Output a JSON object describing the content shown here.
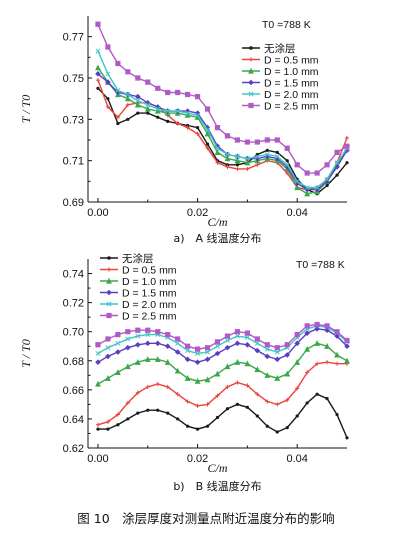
{
  "figure_caption": "图 10　涂层厚度对测量点附近温度分布的影响",
  "colors": {
    "none": "#1a1a1a",
    "d05": "#e8453c",
    "d10": "#3aa84a",
    "d15": "#5a3fc4",
    "d20": "#3fc6c6",
    "d25": "#b05ac8"
  },
  "chart_data": [
    {
      "type": "line",
      "subcaption": "a)　A 线温度分布",
      "annotation": "T0 =788 K",
      "xlabel": "C/m",
      "ylabel": "T / T0",
      "xlim": [
        -0.002,
        0.05
      ],
      "ylim": [
        0.69,
        0.78
      ],
      "xticks": [
        "0.00",
        "0.02",
        "0.04"
      ],
      "xtick_values": [
        0.0,
        0.02,
        0.04
      ],
      "yticks": [
        "0.69",
        "0.71",
        "0.73",
        "0.75",
        "0.77"
      ],
      "ytick_values": [
        0.69,
        0.71,
        0.73,
        0.75,
        0.77
      ],
      "legend": [
        "无涂层",
        "D = 0.5 mm",
        "D = 1.0 mm",
        "D = 1.5 mm",
        "D = 2.0 mm",
        "D = 2.5 mm"
      ],
      "x": [
        0,
        0.002,
        0.004,
        0.006,
        0.008,
        0.01,
        0.012,
        0.014,
        0.016,
        0.018,
        0.02,
        0.022,
        0.024,
        0.026,
        0.028,
        0.03,
        0.032,
        0.034,
        0.036,
        0.038,
        0.04,
        0.042,
        0.044,
        0.046,
        0.048,
        0.05
      ],
      "series": [
        {
          "name": "无涂层",
          "color_key": "none",
          "values": [
            0.745,
            0.74,
            0.728,
            0.73,
            0.733,
            0.733,
            0.731,
            0.729,
            0.728,
            0.727,
            0.726,
            0.718,
            0.71,
            0.708,
            0.708,
            0.709,
            0.713,
            0.715,
            0.714,
            0.71,
            0.701,
            0.696,
            0.694,
            0.698,
            0.703,
            0.709
          ]
        },
        {
          "name": "D = 0.5 mm",
          "color_key": "d05",
          "values": [
            0.749,
            0.736,
            0.731,
            0.737,
            0.738,
            0.738,
            0.736,
            0.732,
            0.728,
            0.726,
            0.723,
            0.716,
            0.709,
            0.707,
            0.706,
            0.706,
            0.708,
            0.71,
            0.709,
            0.704,
            0.697,
            0.696,
            0.697,
            0.701,
            0.709,
            0.721
          ]
        },
        {
          "name": "D = 1.0 mm",
          "color_key": "d10",
          "values": [
            0.755,
            0.748,
            0.742,
            0.74,
            0.737,
            0.735,
            0.734,
            0.733,
            0.733,
            0.732,
            0.731,
            0.723,
            0.714,
            0.711,
            0.71,
            0.709,
            0.71,
            0.711,
            0.71,
            0.706,
            0.697,
            0.694,
            0.695,
            0.7,
            0.708,
            0.716
          ]
        },
        {
          "name": "D = 1.5 mm",
          "color_key": "d15",
          "values": [
            0.752,
            0.748,
            0.743,
            0.742,
            0.741,
            0.738,
            0.736,
            0.734,
            0.734,
            0.734,
            0.733,
            0.726,
            0.717,
            0.713,
            0.712,
            0.711,
            0.711,
            0.712,
            0.711,
            0.707,
            0.699,
            0.696,
            0.696,
            0.7,
            0.707,
            0.715
          ]
        },
        {
          "name": "D = 2.0 mm",
          "color_key": "d20",
          "values": [
            0.763,
            0.752,
            0.744,
            0.742,
            0.739,
            0.737,
            0.735,
            0.734,
            0.734,
            0.733,
            0.732,
            0.725,
            0.716,
            0.713,
            0.712,
            0.711,
            0.712,
            0.713,
            0.712,
            0.708,
            0.7,
            0.697,
            0.697,
            0.701,
            0.709,
            0.716
          ]
        },
        {
          "name": "D = 2.5 mm",
          "color_key": "d25",
          "values": [
            0.776,
            0.765,
            0.757,
            0.753,
            0.75,
            0.748,
            0.745,
            0.743,
            0.743,
            0.742,
            0.741,
            0.735,
            0.726,
            0.722,
            0.72,
            0.719,
            0.719,
            0.72,
            0.72,
            0.716,
            0.708,
            0.704,
            0.704,
            0.708,
            0.714,
            0.717
          ]
        }
      ]
    },
    {
      "type": "line",
      "subcaption": "b)　B 线温度分布",
      "annotation": "T0 =788 K",
      "xlabel": "C/m",
      "ylabel": "T / T0",
      "xlim": [
        -0.002,
        0.05
      ],
      "ylim": [
        0.62,
        0.75
      ],
      "xticks": [
        "0.00",
        "0.02",
        "0.04"
      ],
      "xtick_values": [
        0.0,
        0.02,
        0.04
      ],
      "yticks": [
        "0.62",
        "0.64",
        "0.66",
        "0.68",
        "0.70",
        "0.72",
        "0.74"
      ],
      "ytick_values": [
        0.62,
        0.64,
        0.66,
        0.68,
        0.7,
        0.72,
        0.74
      ],
      "legend": [
        "无涂层",
        "D = 0.5 mm",
        "D = 1.0 mm",
        "D = 1.5 mm",
        "D = 2.0 mm",
        "D = 2.5 mm"
      ],
      "x": [
        0,
        0.002,
        0.004,
        0.006,
        0.008,
        0.01,
        0.012,
        0.014,
        0.016,
        0.018,
        0.02,
        0.022,
        0.024,
        0.026,
        0.028,
        0.03,
        0.032,
        0.034,
        0.036,
        0.038,
        0.04,
        0.042,
        0.044,
        0.046,
        0.048,
        0.05
      ],
      "series": [
        {
          "name": "无涂层",
          "color_key": "none",
          "values": [
            0.633,
            0.633,
            0.636,
            0.64,
            0.644,
            0.646,
            0.646,
            0.644,
            0.64,
            0.635,
            0.633,
            0.635,
            0.641,
            0.647,
            0.65,
            0.648,
            0.642,
            0.635,
            0.631,
            0.634,
            0.642,
            0.651,
            0.657,
            0.654,
            0.643,
            0.627
          ]
        },
        {
          "name": "D = 0.5 mm",
          "color_key": "d05",
          "values": [
            0.636,
            0.638,
            0.643,
            0.651,
            0.658,
            0.662,
            0.664,
            0.662,
            0.657,
            0.652,
            0.649,
            0.65,
            0.656,
            0.662,
            0.665,
            0.663,
            0.657,
            0.652,
            0.65,
            0.653,
            0.661,
            0.672,
            0.678,
            0.679,
            0.678,
            0.678
          ]
        },
        {
          "name": "D = 1.0 mm",
          "color_key": "d10",
          "values": [
            0.664,
            0.668,
            0.672,
            0.676,
            0.679,
            0.681,
            0.681,
            0.679,
            0.673,
            0.668,
            0.666,
            0.667,
            0.671,
            0.676,
            0.679,
            0.678,
            0.674,
            0.67,
            0.668,
            0.671,
            0.679,
            0.688,
            0.692,
            0.69,
            0.684,
            0.68
          ]
        },
        {
          "name": "D = 1.5 mm",
          "color_key": "d15",
          "values": [
            0.679,
            0.683,
            0.686,
            0.689,
            0.691,
            0.692,
            0.692,
            0.69,
            0.686,
            0.681,
            0.679,
            0.681,
            0.685,
            0.689,
            0.692,
            0.691,
            0.687,
            0.683,
            0.681,
            0.684,
            0.692,
            0.699,
            0.702,
            0.701,
            0.697,
            0.69
          ]
        },
        {
          "name": "D = 2.0 mm",
          "color_key": "d20",
          "values": [
            0.685,
            0.689,
            0.692,
            0.695,
            0.697,
            0.698,
            0.698,
            0.696,
            0.692,
            0.687,
            0.685,
            0.686,
            0.69,
            0.694,
            0.697,
            0.696,
            0.692,
            0.688,
            0.686,
            0.689,
            0.696,
            0.702,
            0.704,
            0.703,
            0.699,
            0.693
          ]
        },
        {
          "name": "D = 2.5 mm",
          "color_key": "d25",
          "values": [
            0.691,
            0.695,
            0.698,
            0.7,
            0.701,
            0.701,
            0.7,
            0.698,
            0.695,
            0.69,
            0.688,
            0.689,
            0.693,
            0.697,
            0.7,
            0.699,
            0.695,
            0.691,
            0.689,
            0.691,
            0.698,
            0.704,
            0.705,
            0.704,
            0.7,
            0.694
          ]
        }
      ]
    }
  ]
}
